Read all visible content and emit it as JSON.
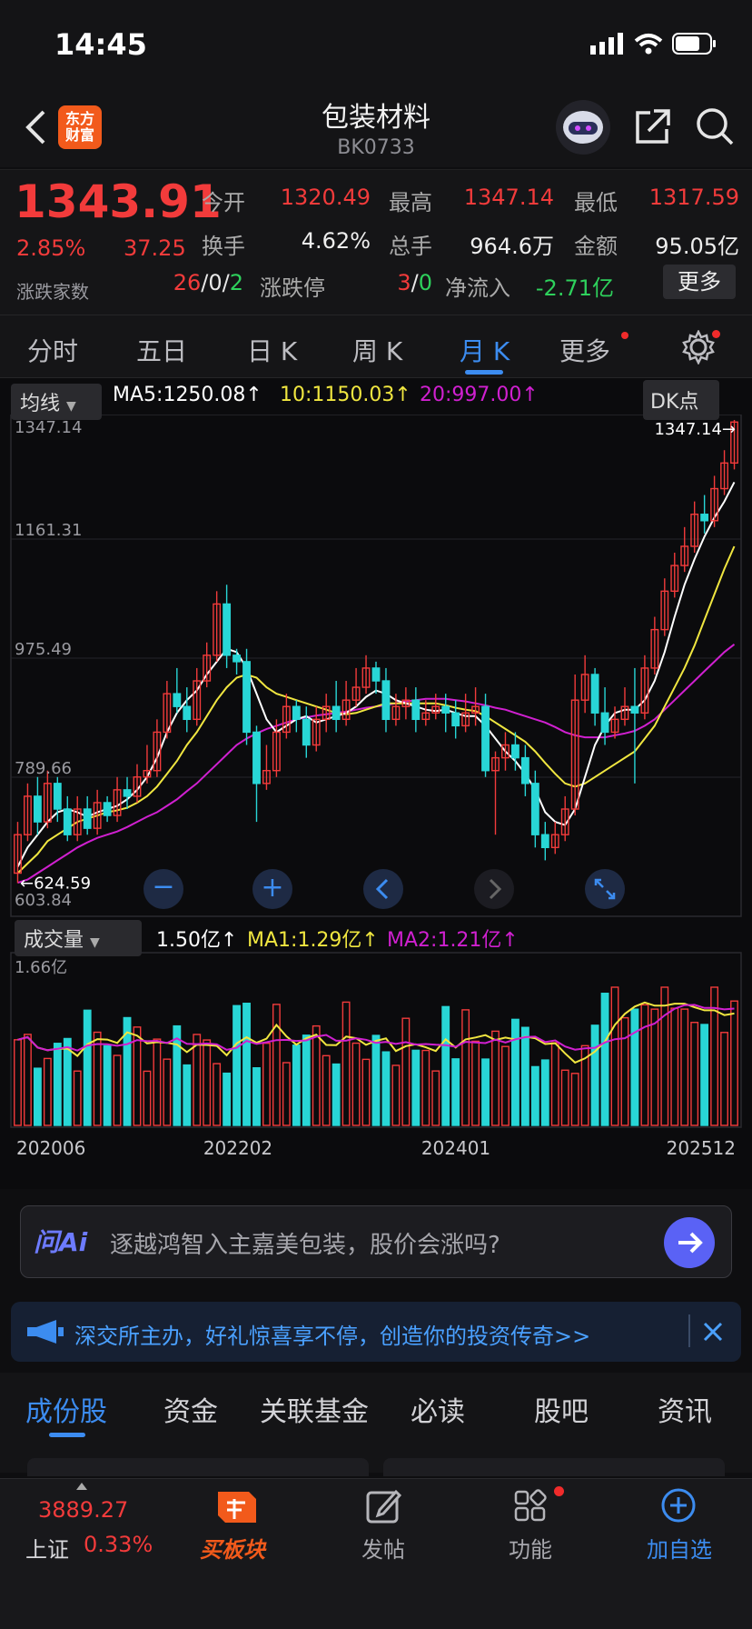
{
  "status_bar": {
    "time": "14:45"
  },
  "header": {
    "title": "包装材料",
    "code": "BK0733",
    "logo_text": "东方财富"
  },
  "quote": {
    "price": "1343.91",
    "change_pct": "2.85%",
    "change_abs": "37.25",
    "rows": [
      [
        {
          "label": "今开",
          "value": "1320.49",
          "color": "red"
        },
        {
          "label": "最高",
          "value": "1347.14",
          "color": "red"
        },
        {
          "label": "最低",
          "value": "1317.59",
          "color": "red"
        }
      ],
      [
        {
          "label": "换手",
          "value": "4.62%",
          "color": "white"
        },
        {
          "label": "总手",
          "value": "964.6万",
          "color": "white"
        },
        {
          "label": "金额",
          "value": "95.05亿",
          "color": "white"
        }
      ]
    ],
    "breadth_label": "涨跌家数",
    "breadth_up": "26",
    "breadth_flat": "0",
    "breadth_down": "2",
    "limit_label": "涨跌停",
    "limit_up": "3",
    "limit_down": "0",
    "netflow_label": "净流入",
    "netflow_value": "-2.71亿",
    "more_button": "更多",
    "sep": "/"
  },
  "k_tabs": [
    "分时",
    "五日",
    "日 K",
    "周 K",
    "月 K",
    "更多"
  ],
  "k_tab_active": 4,
  "ma_bar": {
    "selector": "均线",
    "ma5": "MA5:1250.08↑",
    "ma10": "10:1150.03↑",
    "ma20": "20:997.00↑",
    "dk": "DK点"
  },
  "price_axis": [
    "1347.14",
    "1161.31",
    "975.49",
    "789.66",
    "603.84"
  ],
  "price_marks": {
    "high": "1347.14→",
    "low": "←624.59"
  },
  "vol_bar": {
    "selector": "成交量",
    "value": "1.50亿↑",
    "ma1": "MA1:1.29亿↑",
    "ma2": "MA2:1.21亿↑"
  },
  "vol_axis_top": "1.66亿",
  "date_axis": [
    "202006",
    "202202",
    "202401",
    "202512"
  ],
  "colors": {
    "up": "#f23b3b",
    "down": "#28d6d6",
    "ma5": "#ffffff",
    "ma10": "#f0e640",
    "ma20": "#d020d0",
    "accent": "#3c8cf0"
  },
  "chart_data": {
    "type": "candlestick",
    "y_range": [
      603.84,
      1347.14
    ],
    "volume_range_top": "1.66亿",
    "x_labels": [
      "202006",
      "202202",
      "202401",
      "202512"
    ],
    "candles": [
      [
        640,
        700,
        624.59,
        720
      ],
      [
        700,
        760,
        690,
        780
      ],
      [
        760,
        720,
        700,
        790
      ],
      [
        720,
        780,
        710,
        800
      ],
      [
        780,
        740,
        720,
        790
      ],
      [
        740,
        700,
        690,
        760
      ],
      [
        700,
        740,
        690,
        760
      ],
      [
        740,
        710,
        700,
        760
      ],
      [
        710,
        750,
        700,
        770
      ],
      [
        750,
        730,
        720,
        760
      ],
      [
        730,
        770,
        720,
        790
      ],
      [
        770,
        760,
        740,
        790
      ],
      [
        760,
        790,
        750,
        810
      ],
      [
        790,
        800,
        780,
        840
      ],
      [
        800,
        860,
        790,
        880
      ],
      [
        860,
        920,
        850,
        940
      ],
      [
        920,
        900,
        890,
        960
      ],
      [
        900,
        880,
        860,
        930
      ],
      [
        880,
        940,
        870,
        960
      ],
      [
        940,
        980,
        930,
        1000
      ],
      [
        980,
        1060,
        970,
        1080
      ],
      [
        1060,
        980,
        960,
        1090
      ],
      [
        980,
        970,
        950,
        990
      ],
      [
        970,
        860,
        840,
        990
      ],
      [
        860,
        780,
        720,
        870
      ],
      [
        780,
        800,
        770,
        840
      ],
      [
        800,
        860,
        790,
        880
      ],
      [
        860,
        900,
        850,
        920
      ],
      [
        900,
        880,
        860,
        910
      ],
      [
        880,
        840,
        820,
        900
      ],
      [
        840,
        880,
        830,
        900
      ],
      [
        880,
        900,
        860,
        920
      ],
      [
        900,
        880,
        860,
        940
      ],
      [
        880,
        910,
        870,
        940
      ],
      [
        910,
        930,
        900,
        960
      ],
      [
        930,
        960,
        920,
        980
      ],
      [
        960,
        940,
        920,
        970
      ],
      [
        940,
        880,
        860,
        960
      ],
      [
        880,
        900,
        870,
        920
      ],
      [
        900,
        910,
        880,
        930
      ],
      [
        910,
        880,
        860,
        930
      ],
      [
        880,
        890,
        870,
        910
      ],
      [
        890,
        900,
        880,
        920
      ],
      [
        900,
        890,
        860,
        920
      ],
      [
        890,
        870,
        850,
        910
      ],
      [
        870,
        890,
        860,
        920
      ],
      [
        890,
        900,
        870,
        930
      ],
      [
        900,
        800,
        790,
        920
      ],
      [
        800,
        820,
        700,
        830
      ],
      [
        820,
        840,
        800,
        860
      ],
      [
        840,
        820,
        800,
        860
      ],
      [
        820,
        780,
        760,
        840
      ],
      [
        780,
        700,
        680,
        800
      ],
      [
        700,
        680,
        660,
        720
      ],
      [
        680,
        700,
        670,
        720
      ],
      [
        700,
        740,
        690,
        760
      ],
      [
        740,
        910,
        730,
        950
      ],
      [
        910,
        950,
        890,
        980
      ],
      [
        950,
        890,
        870,
        960
      ],
      [
        890,
        860,
        840,
        930
      ],
      [
        860,
        880,
        850,
        900
      ],
      [
        880,
        900,
        870,
        930
      ],
      [
        900,
        890,
        780,
        960
      ],
      [
        890,
        960,
        880,
        980
      ],
      [
        960,
        1020,
        950,
        1040
      ],
      [
        1020,
        1080,
        1010,
        1100
      ],
      [
        1080,
        1120,
        1070,
        1140
      ],
      [
        1120,
        1150,
        1110,
        1180
      ],
      [
        1150,
        1200,
        1140,
        1220
      ],
      [
        1200,
        1190,
        1170,
        1230
      ],
      [
        1190,
        1240,
        1180,
        1260
      ],
      [
        1240,
        1280,
        1230,
        1300
      ],
      [
        1280,
        1343.91,
        1270,
        1347.14
      ]
    ],
    "ma5": [
      650,
      680,
      700,
      720,
      735,
      740,
      735,
      728,
      735,
      740,
      745,
      755,
      770,
      790,
      820,
      860,
      890,
      910,
      925,
      950,
      970,
      990,
      985,
      960,
      920,
      880,
      860,
      870,
      880,
      885,
      875,
      880,
      885,
      890,
      900,
      915,
      925,
      920,
      910,
      905,
      900,
      895,
      893,
      895,
      890,
      885,
      885,
      870,
      850,
      830,
      815,
      795,
      770,
      735,
      720,
      715,
      740,
      790,
      840,
      870,
      890,
      895,
      895,
      910,
      940,
      985,
      1040,
      1090,
      1130,
      1165,
      1195,
      1220,
      1250.08
    ],
    "ma10": [
      640,
      655,
      670,
      690,
      700,
      710,
      720,
      725,
      730,
      735,
      738,
      742,
      750,
      760,
      775,
      795,
      815,
      840,
      860,
      885,
      910,
      930,
      945,
      950,
      945,
      930,
      920,
      915,
      910,
      905,
      900,
      895,
      890,
      888,
      890,
      895,
      900,
      905,
      905,
      905,
      905,
      905,
      905,
      902,
      898,
      895,
      893,
      885,
      875,
      865,
      855,
      845,
      830,
      812,
      795,
      780,
      775,
      780,
      790,
      800,
      810,
      820,
      830,
      850,
      870,
      900,
      930,
      960,
      995,
      1035,
      1075,
      1115,
      1150.03
    ],
    "ma20": [
      625,
      630,
      640,
      650,
      660,
      670,
      680,
      688,
      695,
      700,
      705,
      712,
      720,
      728,
      735,
      745,
      755,
      768,
      780,
      795,
      810,
      825,
      840,
      850,
      858,
      865,
      870,
      875,
      880,
      883,
      886,
      888,
      890,
      892,
      895,
      898,
      900,
      902,
      905,
      908,
      910,
      912,
      912,
      912,
      910,
      908,
      905,
      902,
      898,
      895,
      890,
      885,
      880,
      875,
      868,
      860,
      855,
      852,
      852,
      852,
      855,
      858,
      862,
      870,
      880,
      895,
      910,
      925,
      940,
      955,
      970,
      985,
      997.0
    ],
    "volume_labels": {
      "value": "1.50亿",
      "ma1": "1.29亿",
      "ma2": "1.21亿"
    }
  },
  "ai_bar": {
    "brand": "问Ai",
    "prompt": "逐越鸿智入主嘉美包装，股价会涨吗?"
  },
  "notice": {
    "text": "深交所主办，好礼惊喜享不停，创造你的投资传奇>>"
  },
  "bottom_tabs": [
    "成份股",
    "资金",
    "关联基金",
    "必读",
    "股吧",
    "资讯"
  ],
  "bottom_tab_active": 0,
  "footer": {
    "index_value": "3889.27",
    "index_name": "上证",
    "index_change": "0.33%",
    "buy_label": "买板块",
    "post_label": "发帖",
    "func_label": "功能",
    "add_label": "加自选"
  }
}
